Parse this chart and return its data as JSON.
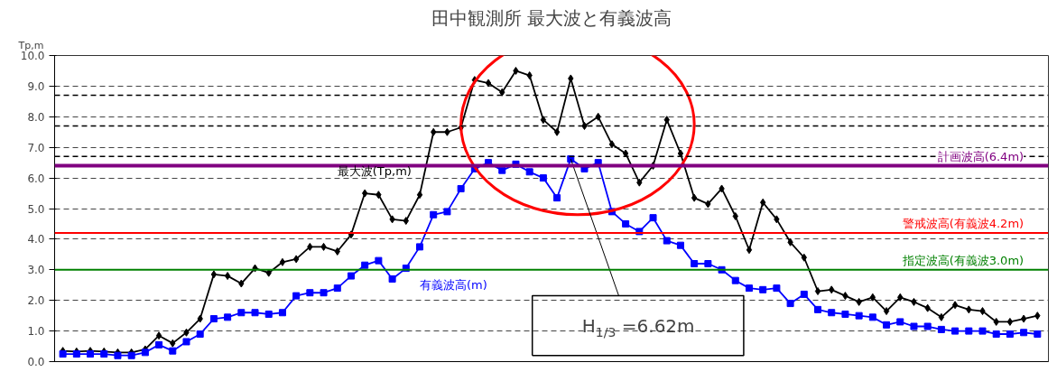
{
  "chart_data": {
    "type": "line",
    "title": "田中観測所 最大波と有義波高",
    "ylabel": "Tp,m",
    "categories": [
      null,
      null,
      null,
      null,
      null,
      null,
      null,
      null,
      null,
      null,
      null,
      null,
      null,
      null,
      null,
      null,
      null,
      null,
      null,
      null,
      null,
      null,
      null,
      null,
      null,
      null,
      null,
      null,
      null,
      null,
      null,
      null,
      null,
      null,
      null,
      null,
      null,
      null,
      null,
      null,
      null,
      null,
      null,
      null,
      null,
      null,
      null,
      null,
      null,
      null,
      null,
      null,
      null,
      null,
      null,
      null,
      null,
      null,
      null,
      null,
      null,
      null,
      null,
      null,
      null,
      null,
      null,
      null,
      null,
      null,
      null,
      null
    ],
    "series": [
      {
        "name": "最大波(Tp,m)",
        "color": "#000000",
        "marker": "diamond",
        "values": [
          0.35,
          0.33,
          0.35,
          0.33,
          0.3,
          0.3,
          0.4,
          0.85,
          0.6,
          0.95,
          1.4,
          2.85,
          2.8,
          2.55,
          3.05,
          2.9,
          3.25,
          3.35,
          3.75,
          3.75,
          3.6,
          4.15,
          5.5,
          5.45,
          4.65,
          4.6,
          5.45,
          7.5,
          7.5,
          7.65,
          9.2,
          9.1,
          8.8,
          9.5,
          9.35,
          7.9,
          7.5,
          9.25,
          7.7,
          8.0,
          7.1,
          6.8,
          5.85,
          6.4,
          7.9,
          6.8,
          5.35,
          5.15,
          5.65,
          4.75,
          3.65,
          5.2,
          4.65,
          3.9,
          3.4,
          2.3,
          2.35,
          2.15,
          1.95,
          2.1,
          1.65,
          2.1,
          1.95,
          1.75,
          1.45,
          1.85,
          1.7,
          1.65,
          1.3,
          1.3,
          1.4,
          1.5
        ]
      },
      {
        "name": "有義波高(m)",
        "color": "#0000ff",
        "marker": "square",
        "values": [
          0.25,
          0.25,
          0.25,
          0.25,
          0.2,
          0.2,
          0.3,
          0.55,
          0.35,
          0.65,
          0.9,
          1.4,
          1.45,
          1.6,
          1.6,
          1.55,
          1.6,
          2.15,
          2.25,
          2.25,
          2.4,
          2.8,
          3.15,
          3.3,
          2.7,
          3.05,
          3.75,
          4.8,
          4.9,
          5.65,
          6.3,
          6.5,
          6.25,
          6.45,
          6.2,
          6.0,
          5.35,
          6.62,
          6.3,
          6.5,
          4.9,
          4.5,
          4.25,
          4.7,
          3.95,
          3.8,
          3.2,
          3.2,
          3.0,
          2.65,
          2.4,
          2.35,
          2.4,
          1.9,
          2.2,
          1.7,
          1.6,
          1.55,
          1.5,
          1.45,
          1.2,
          1.3,
          1.15,
          1.15,
          1.05,
          1.0,
          1.0,
          1.0,
          0.9,
          0.9,
          0.95,
          0.9
        ]
      }
    ],
    "ylim": [
      0,
      10
    ],
    "yticks": [
      {
        "value": 0,
        "label": "0.0"
      },
      {
        "value": 1,
        "label": "1.0"
      },
      {
        "value": 2,
        "label": "2.0"
      },
      {
        "value": 3,
        "label": "3.0"
      },
      {
        "value": 4,
        "label": "4.0"
      },
      {
        "value": 5,
        "label": "5.0"
      },
      {
        "value": 6,
        "label": "6.0"
      },
      {
        "value": 7,
        "label": "7.0"
      },
      {
        "value": 8,
        "label": "8.0"
      },
      {
        "value": 9,
        "label": "9.0"
      },
      {
        "value": 10,
        "label": "10.0"
      }
    ],
    "grid": "y",
    "tick_labels": "y",
    "legend": false,
    "line_style": "solid",
    "ref_lines": [
      {
        "axis": "y",
        "value": 6.4,
        "label": "計画波高(6.4m)",
        "color": "#800080"
      },
      {
        "axis": "y",
        "value": 4.2,
        "label": "警戒波高(有義波4.2m)",
        "color": "#ff0000"
      },
      {
        "axis": "y",
        "value": 3.0,
        "label": "指定波高(有義波3.0m)",
        "color": "#008000"
      },
      {
        "axis": "y",
        "value": 6.7,
        "label": null,
        "color": "#000000",
        "line_style": "dashed"
      },
      {
        "axis": "y",
        "value": 7.7,
        "label": null,
        "color": "#000000",
        "line_style": "dashed"
      },
      {
        "axis": "y",
        "value": 8.7,
        "label": null,
        "color": "#000000",
        "line_style": "dashed"
      }
    ],
    "annotations": [
      "H$_{1/3}$=6.62m"
    ]
  }
}
